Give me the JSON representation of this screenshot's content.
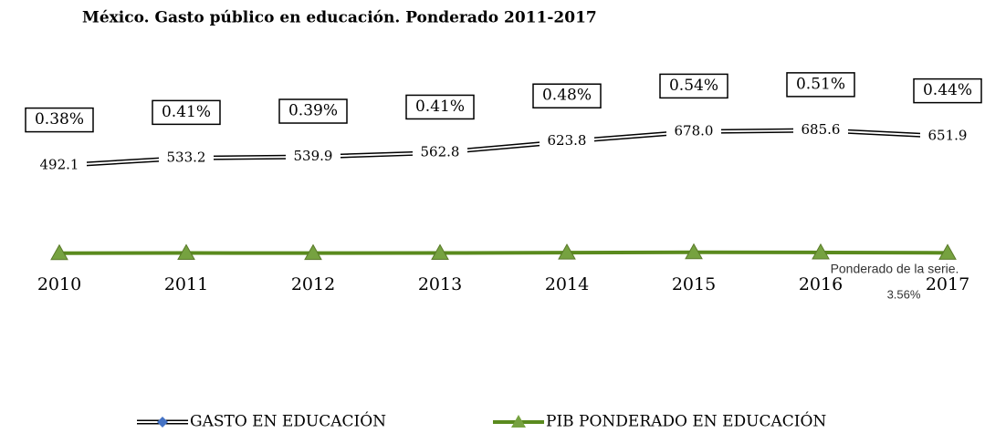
{
  "chart_data": {
    "type": "line",
    "title": "México. Gasto público en educación. Ponderado 2011-2017",
    "categories": [
      "2010",
      "2011",
      "2012",
      "2013",
      "2014",
      "2015",
      "2016",
      "2017"
    ],
    "series": [
      {
        "name": "GASTO EN EDUCACIÓN",
        "color": "#ffffff",
        "marker_color": "#4472c4",
        "values": [
          492.1,
          533.2,
          539.9,
          562.8,
          623.8,
          678.0,
          685.6,
          651.9
        ],
        "value_labels": [
          "492.1",
          "533.2",
          "539.9",
          "562.8",
          "623.8",
          "678.0",
          "685.6",
          "651.9"
        ]
      },
      {
        "name": "PIB PONDERADO EN EDUCACIÓN",
        "color": "#5a8a1e",
        "marker_color": "#76a240",
        "axis": "y2",
        "values": [
          0.38,
          0.41,
          0.39,
          0.41,
          0.48,
          0.54,
          0.51,
          0.44
        ],
        "value_labels": [
          "0.38%",
          "0.41%",
          "0.39%",
          "0.41%",
          "0.48%",
          "0.54%",
          "0.51%",
          "0.44%"
        ]
      }
    ],
    "ylim": [
      0,
      1200
    ],
    "y2lim": [
      0,
      40
    ],
    "annotation": [
      "Ponderado de la serie.",
      "3.56%"
    ],
    "legend": "bottom"
  }
}
